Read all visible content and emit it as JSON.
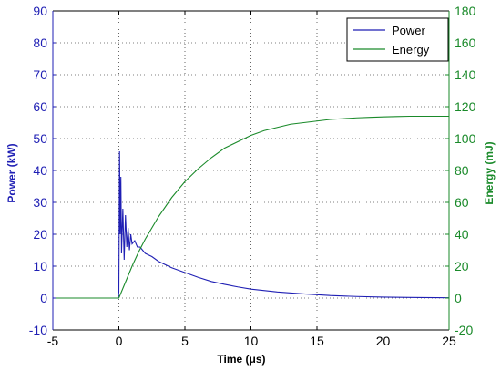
{
  "chart_data": {
    "type": "line",
    "title": "",
    "xlabel": "Time (μs)",
    "ylabel_left": "Power (kW)",
    "ylabel_right": "Energy (mJ)",
    "xlim": [
      -5,
      25
    ],
    "ylim_left": [
      -10,
      90
    ],
    "ylim_right": [
      -20,
      180
    ],
    "xticks": [
      "-5",
      "0",
      "5",
      "10",
      "15",
      "20",
      "25"
    ],
    "yticks_left": [
      "-10",
      "0",
      "10",
      "20",
      "30",
      "40",
      "50",
      "60",
      "70",
      "80",
      "90"
    ],
    "yticks_right": [
      "-20",
      "0",
      "20",
      "40",
      "60",
      "80",
      "100",
      "120",
      "140",
      "160",
      "180"
    ],
    "grid": true,
    "legend_position": "top-right",
    "colors": {
      "power": "#1f1fb4",
      "energy": "#1a8a2a",
      "left_axis": "#1f1fb4",
      "right_axis": "#1a8a2a"
    },
    "series": [
      {
        "name": "Power",
        "axis": "left",
        "color": "#1f1fb4",
        "x": [
          -5,
          -0.05,
          0,
          0.05,
          0.1,
          0.15,
          0.2,
          0.3,
          0.4,
          0.5,
          0.6,
          0.7,
          0.8,
          0.9,
          1.0,
          1.2,
          1.4,
          1.6,
          1.8,
          2.0,
          2.5,
          3,
          4,
          5,
          6,
          7,
          8,
          9,
          10,
          12,
          14,
          16,
          18,
          20,
          22,
          25
        ],
        "values": [
          0,
          0,
          2,
          46,
          20,
          38,
          14,
          28,
          12,
          26,
          16,
          22,
          15,
          20,
          17,
          18,
          16,
          16,
          15,
          14,
          13,
          11.5,
          9.5,
          8,
          6.5,
          5.2,
          4.3,
          3.5,
          2.8,
          1.9,
          1.3,
          0.8,
          0.5,
          0.3,
          0.2,
          0.1
        ]
      },
      {
        "name": "Energy",
        "axis": "right",
        "color": "#1a8a2a",
        "x": [
          -5,
          0,
          0.5,
          1,
          1.5,
          2,
          3,
          4,
          5,
          6,
          7,
          8,
          9,
          10,
          11,
          12,
          13,
          14,
          15,
          16,
          17,
          18,
          19,
          20,
          21,
          22,
          23,
          24,
          25
        ],
        "values": [
          0,
          0,
          10,
          20,
          29,
          37,
          51,
          63,
          73,
          81,
          88,
          94,
          98,
          102,
          105,
          107,
          109,
          110,
          111,
          112,
          112.5,
          113,
          113.3,
          113.6,
          113.8,
          114,
          114,
          114,
          114
        ]
      }
    ]
  }
}
